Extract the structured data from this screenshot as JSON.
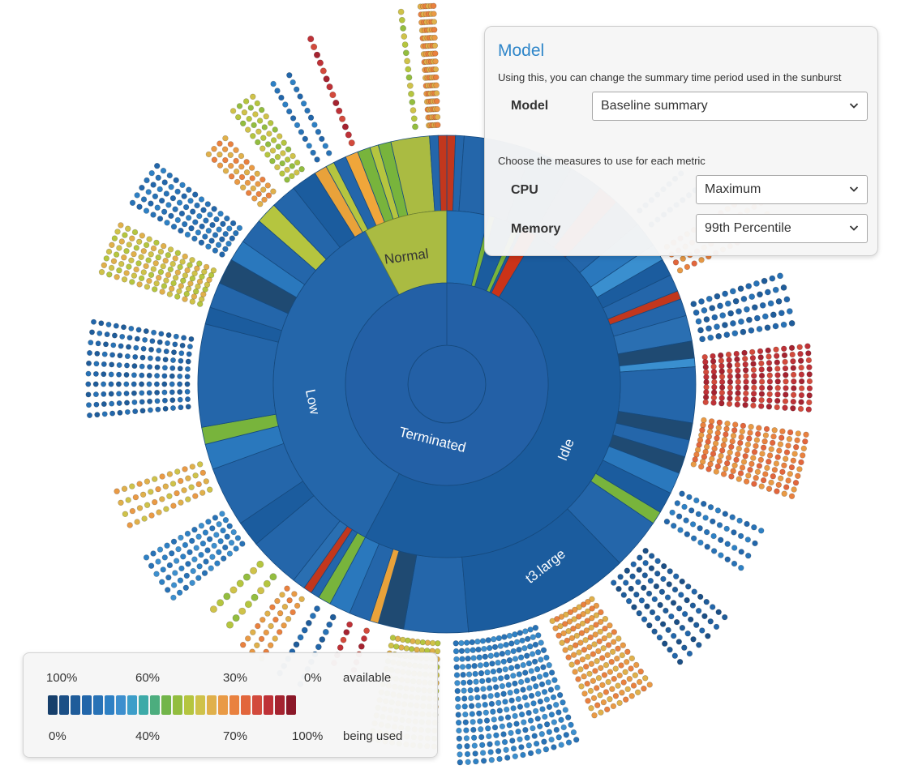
{
  "chart_data": {
    "type": "sunburst",
    "rings": [
      {
        "level": "lifecycle",
        "segments": [
          {
            "label": "Terminated",
            "fraction": 1.0,
            "color": "#2360a6"
          }
        ]
      },
      {
        "level": "utilization",
        "segments": [
          {
            "label": "Idle",
            "fraction": 0.58,
            "color": "#1b5c9e"
          },
          {
            "label": "Low",
            "fraction": 0.345,
            "color": "#2466aa"
          },
          {
            "label": "Normal",
            "fraction": 0.075,
            "color": "#aabb42"
          }
        ]
      },
      {
        "level": "instance type",
        "segments": [
          {
            "label": "t3.large",
            "fraction": 0.24,
            "color": "#1b5c9e"
          }
        ]
      }
    ],
    "legend": {
      "top_ticks": [
        "100%",
        "60%",
        "30%",
        "0%"
      ],
      "top_label": "available",
      "bottom_ticks": [
        "0%",
        "40%",
        "70%",
        "100%"
      ],
      "bottom_label": "being used",
      "colors": [
        "#163f6b",
        "#1b4f86",
        "#1f5c9a",
        "#2266aa",
        "#2872b6",
        "#2e80c4",
        "#3d8fce",
        "#3d9ec9",
        "#3daaa8",
        "#4cad7e",
        "#72b54a",
        "#93bd3f",
        "#b5c53f",
        "#cfc24a",
        "#e0b04b",
        "#e99a45",
        "#e9813f",
        "#e2663c",
        "#d24a3c",
        "#be3137",
        "#a52330",
        "#8b1828"
      ]
    }
  },
  "panel": {
    "title": "Model",
    "model_desc": "Using this, you can change the summary time period used in the sunburst",
    "model_label": "Model",
    "model_value": "Baseline summary",
    "measures_desc": "Choose the measures to use for each metric",
    "cpu_label": "CPU",
    "cpu_value": "Maximum",
    "memory_label": "Memory",
    "memory_value": "99th Percentile",
    "chevron": "chevron-down-icon"
  }
}
